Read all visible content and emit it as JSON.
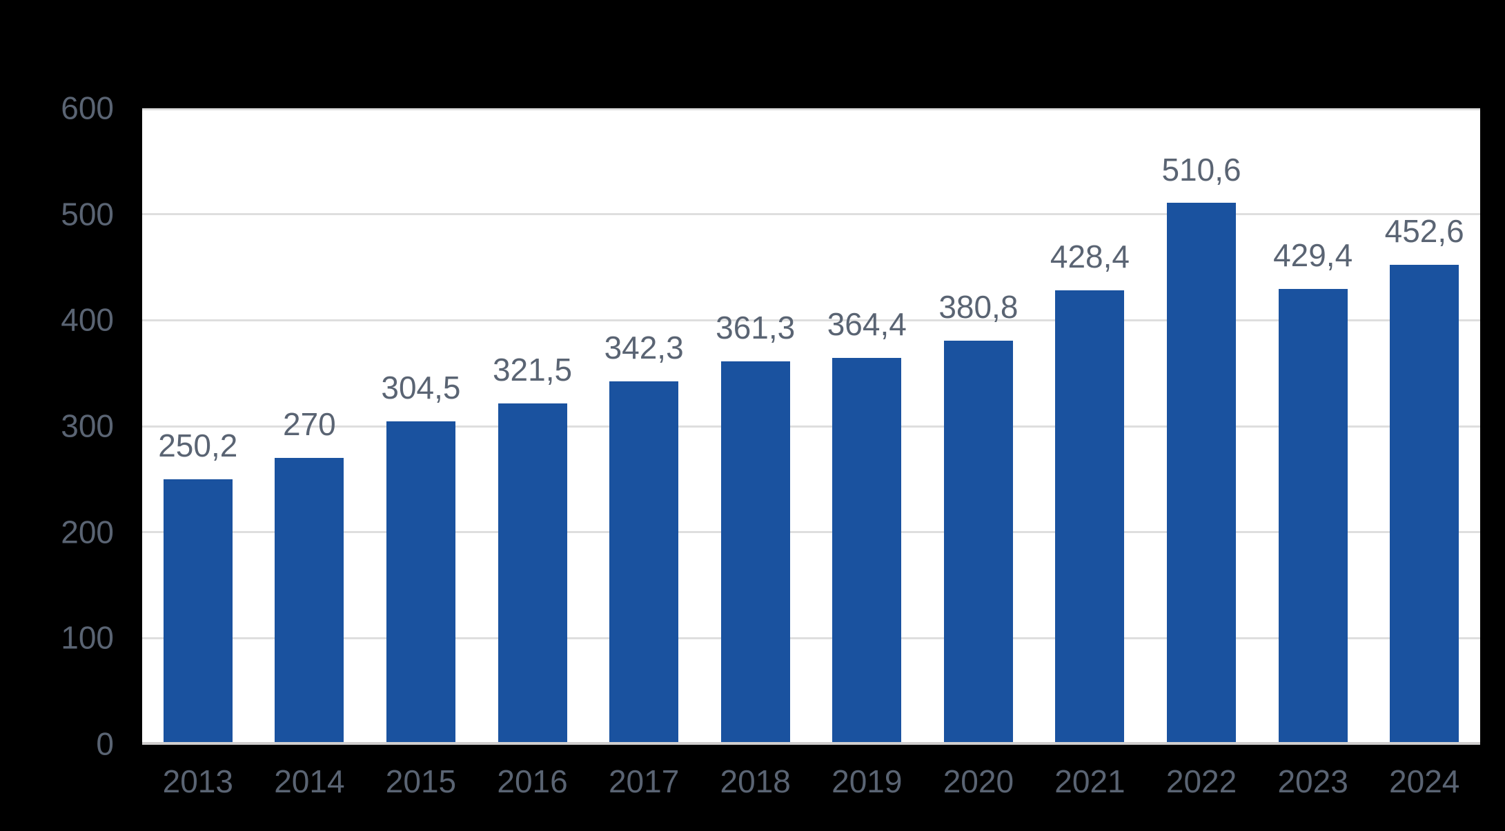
{
  "chart_data": {
    "type": "bar",
    "categories": [
      "2013",
      "2014",
      "2015",
      "2016",
      "2017",
      "2018",
      "2019",
      "2020",
      "2021",
      "2022",
      "2023",
      "2024"
    ],
    "values": [
      250.2,
      270,
      304.5,
      321.5,
      342.3,
      361.3,
      364.4,
      380.8,
      428.4,
      510.6,
      429.4,
      452.6
    ],
    "value_labels": [
      "250,2",
      "270",
      "304,5",
      "321,5",
      "342,3",
      "361,3",
      "364,4",
      "380,8",
      "428,4",
      "510,6",
      "429,4",
      "452,6"
    ],
    "title": "",
    "xlabel": "",
    "ylabel": "",
    "ylim": [
      0,
      600
    ],
    "ytick_interval": 100,
    "ytick_labels": [
      "0",
      "100",
      "200",
      "300",
      "400",
      "500",
      "600"
    ],
    "grid": true,
    "legend": false,
    "colors": {
      "bar": "#1A529F",
      "label": "#5A6473",
      "gridline": "#DEDEDE",
      "baseline": "#D0CECE",
      "plot_background": "#FFFFFF",
      "page_background": "#000000"
    }
  }
}
